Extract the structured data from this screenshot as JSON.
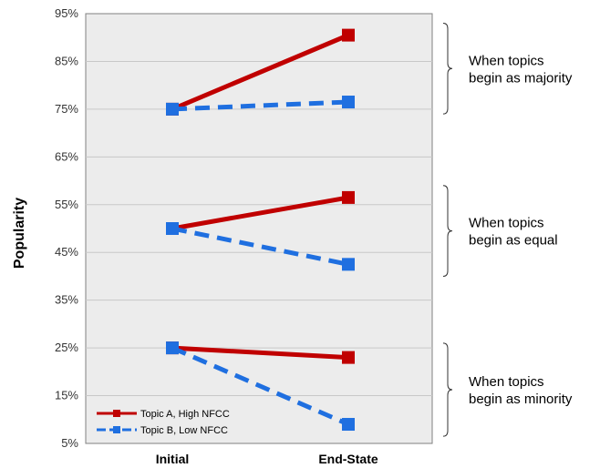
{
  "chart_data": {
    "type": "line",
    "ylabel": "Popularity",
    "categories": [
      "Initial",
      "End-State"
    ],
    "ylim": [
      5,
      95
    ],
    "y_ticks": [
      "5%",
      "15%",
      "25%",
      "35%",
      "45%",
      "55%",
      "65%",
      "75%",
      "85%",
      "95%"
    ],
    "grid": true,
    "legend_position": "bottom-left",
    "series": [
      {
        "name": "Topic A, High NFCC",
        "group": "majority",
        "color": "#c00000",
        "dashed": false,
        "values": [
          75,
          90.5
        ]
      },
      {
        "name": "Topic B, Low NFCC",
        "group": "majority",
        "color": "#1f6fe0",
        "dashed": true,
        "values": [
          75,
          76.5
        ]
      },
      {
        "name": "Topic A, High NFCC",
        "group": "equal",
        "color": "#c00000",
        "dashed": false,
        "values": [
          50,
          56.5
        ]
      },
      {
        "name": "Topic B, Low NFCC",
        "group": "equal",
        "color": "#1f6fe0",
        "dashed": true,
        "values": [
          50,
          42.5
        ]
      },
      {
        "name": "Topic A, High NFCC",
        "group": "minority",
        "color": "#c00000",
        "dashed": false,
        "values": [
          25,
          23
        ]
      },
      {
        "name": "Topic B, Low NFCC",
        "group": "minority",
        "color": "#1f6fe0",
        "dashed": true,
        "values": [
          25,
          9
        ]
      }
    ],
    "legend": [
      {
        "label": "Topic A, High NFCC",
        "color": "#c00000"
      },
      {
        "label": "Topic B, Low NFCC",
        "color": "#1f6fe0"
      }
    ],
    "annotations": [
      {
        "line1": "When topics",
        "line2": "begin as majority",
        "range": [
          74,
          93
        ]
      },
      {
        "line1": "When topics",
        "line2": "begin as equal",
        "range": [
          40,
          59
        ]
      },
      {
        "line1": "When topics",
        "line2": "begin as minority",
        "range": [
          6.5,
          26
        ]
      }
    ]
  }
}
